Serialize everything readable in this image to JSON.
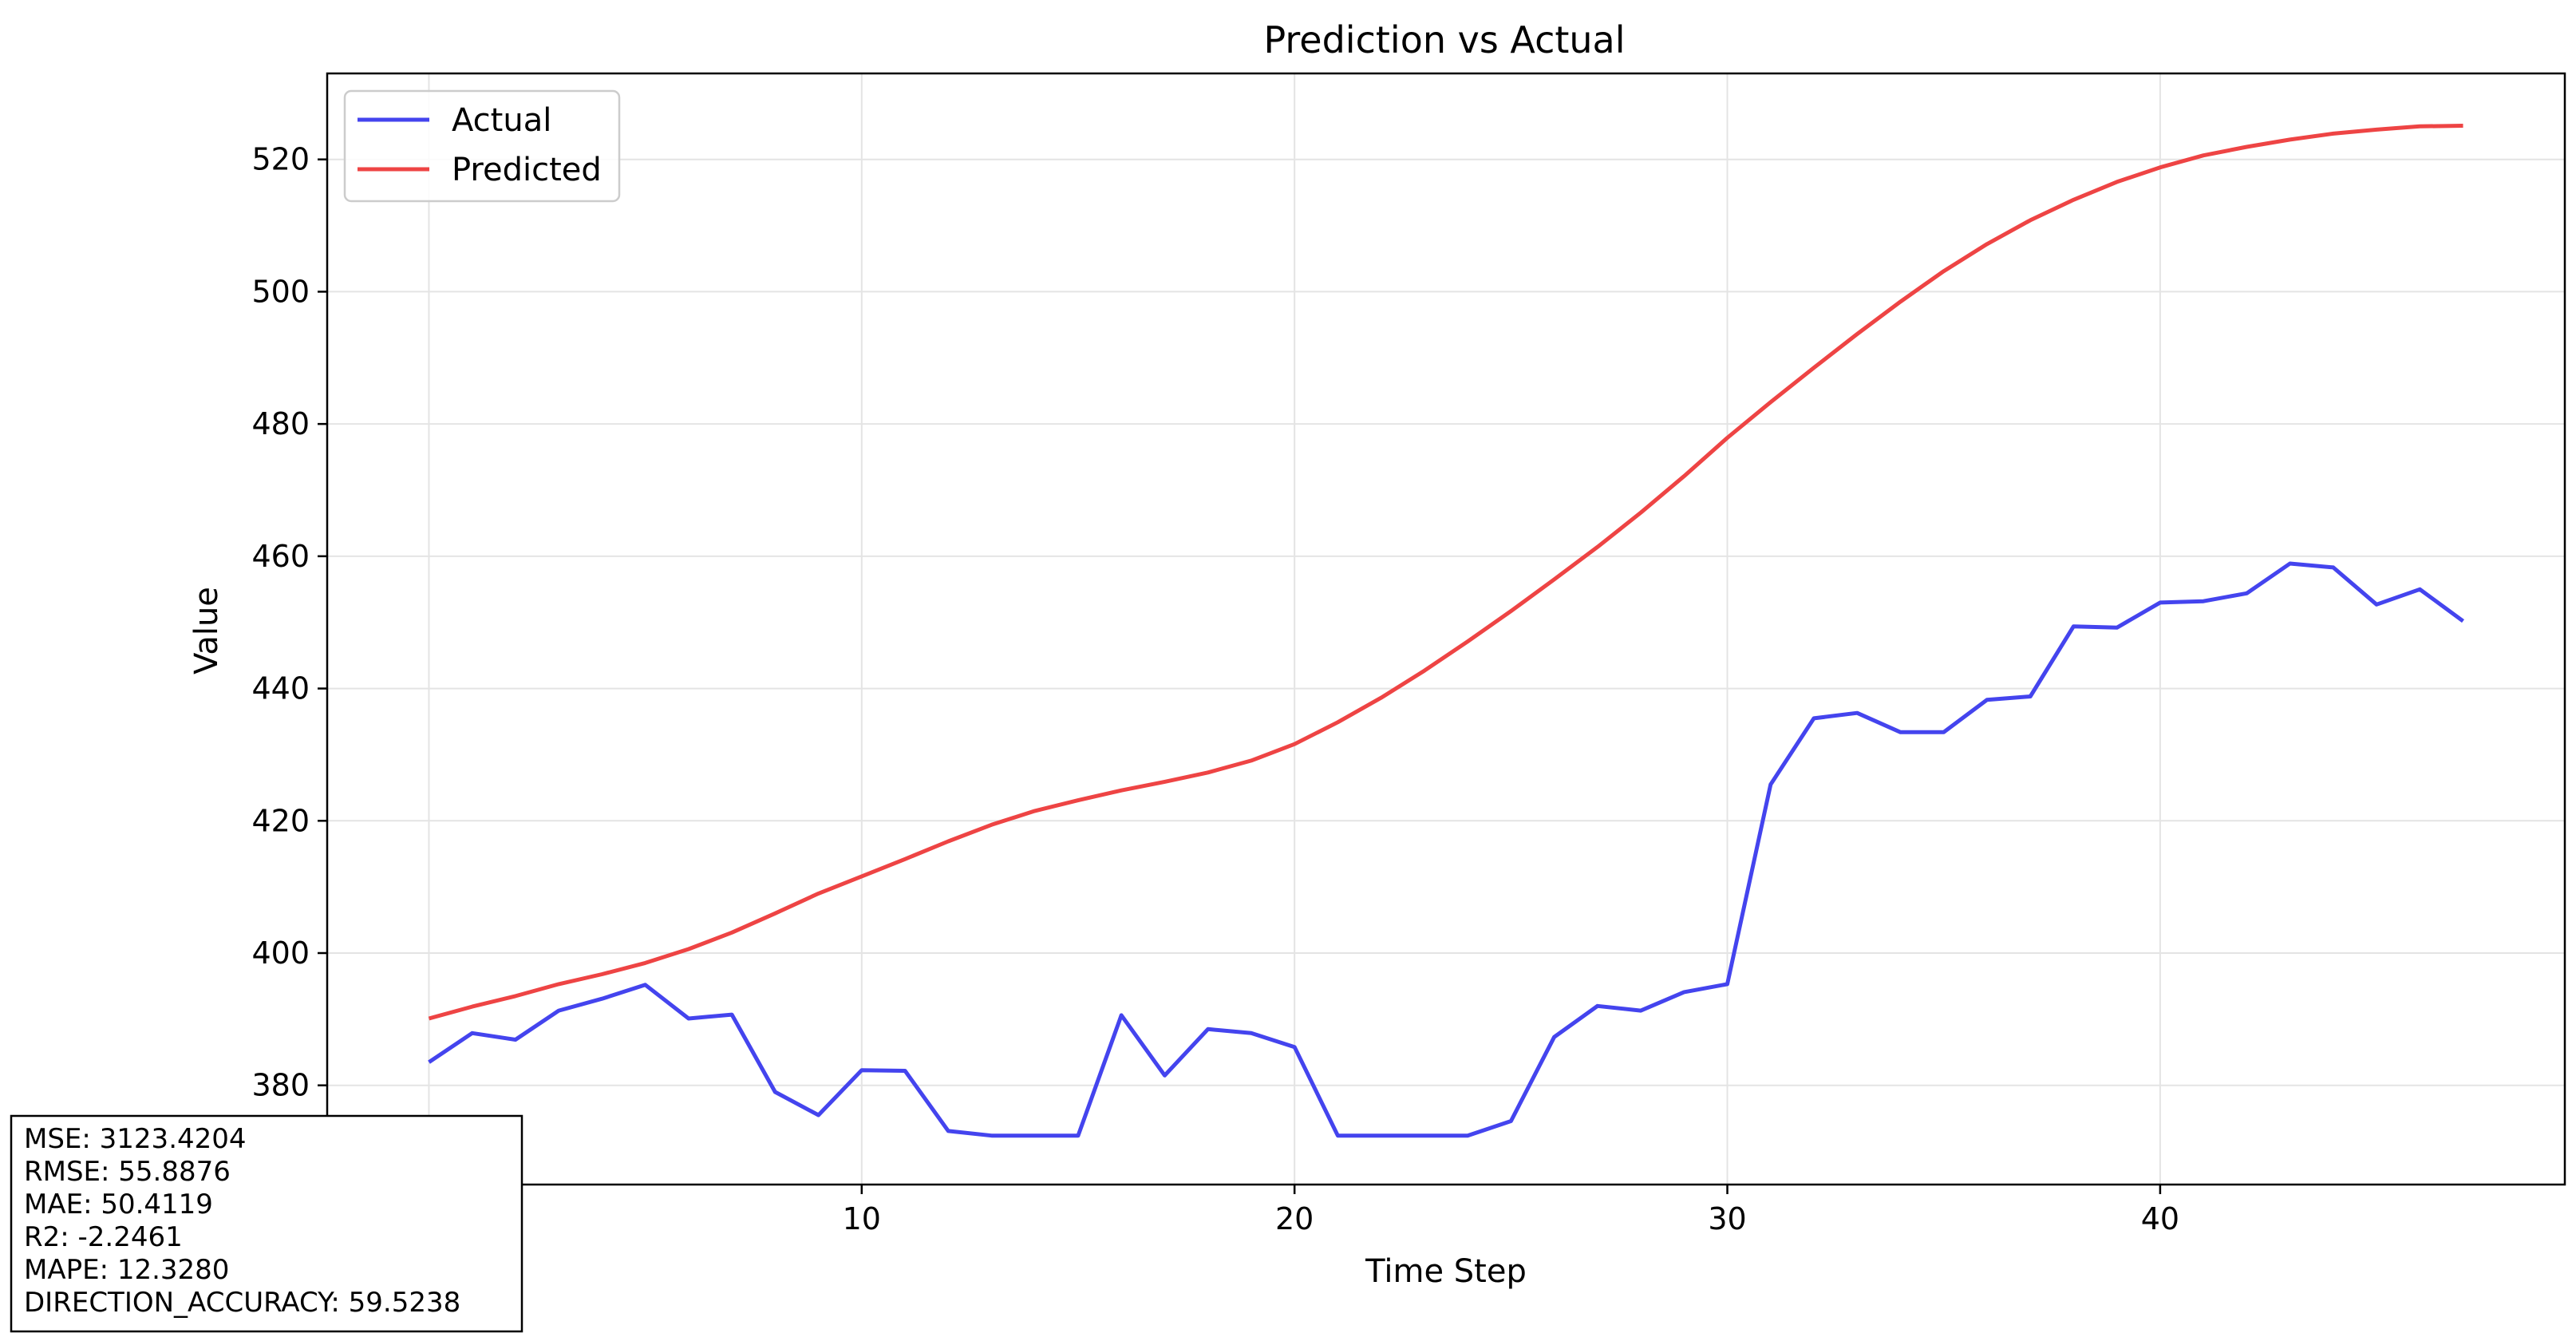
{
  "chart_data": {
    "type": "line",
    "title": "Prediction vs Actual",
    "xlabel": "Time Step",
    "ylabel": "Value",
    "xlim": [
      -2.35,
      49.35
    ],
    "ylim": [
      365,
      533
    ],
    "xticks": [
      0,
      10,
      20,
      30,
      40
    ],
    "yticks": [
      380,
      400,
      420,
      440,
      460,
      480,
      500,
      520
    ],
    "grid": true,
    "legend_position": "upper-left",
    "series": [
      {
        "name": "Actual",
        "color": "#4444ee",
        "values": [
          383.5,
          387.9,
          386.9,
          391.3,
          393.1,
          395.2,
          390.1,
          390.7,
          379.0,
          375.5,
          382.3,
          382.2,
          373.1,
          372.4,
          372.4,
          372.4,
          390.6,
          381.5,
          388.5,
          387.9,
          385.8,
          372.4,
          372.4,
          372.4,
          372.4,
          374.6,
          387.3,
          392.0,
          391.3,
          394.1,
          395.3,
          425.5,
          435.5,
          436.3,
          433.4,
          433.4,
          438.3,
          438.8,
          449.4,
          449.2,
          453.0,
          453.2,
          454.4,
          458.9,
          458.3,
          452.7,
          455.0,
          450.2
        ]
      },
      {
        "name": "Predicted",
        "color": "#ee4444",
        "values": [
          390.1,
          391.9,
          393.5,
          395.3,
          396.8,
          398.5,
          400.6,
          403.1,
          406.0,
          409.0,
          411.6,
          414.2,
          416.9,
          419.4,
          421.5,
          423.1,
          424.6,
          425.9,
          427.3,
          429.1,
          431.6,
          434.9,
          438.6,
          442.7,
          447.1,
          451.7,
          456.5,
          461.4,
          466.6,
          472.1,
          477.9,
          483.3,
          488.5,
          493.6,
          498.5,
          503.1,
          507.2,
          510.8,
          513.9,
          516.6,
          518.8,
          520.6,
          521.9,
          523.0,
          523.9,
          524.5,
          525.0,
          525.1
        ]
      }
    ],
    "metrics": [
      "MSE: 3123.4204",
      "RMSE: 55.8876",
      "MAE: 50.4119",
      "R2: -2.2461",
      "MAPE: 12.3280",
      "DIRECTION_ACCURACY: 59.5238"
    ]
  }
}
